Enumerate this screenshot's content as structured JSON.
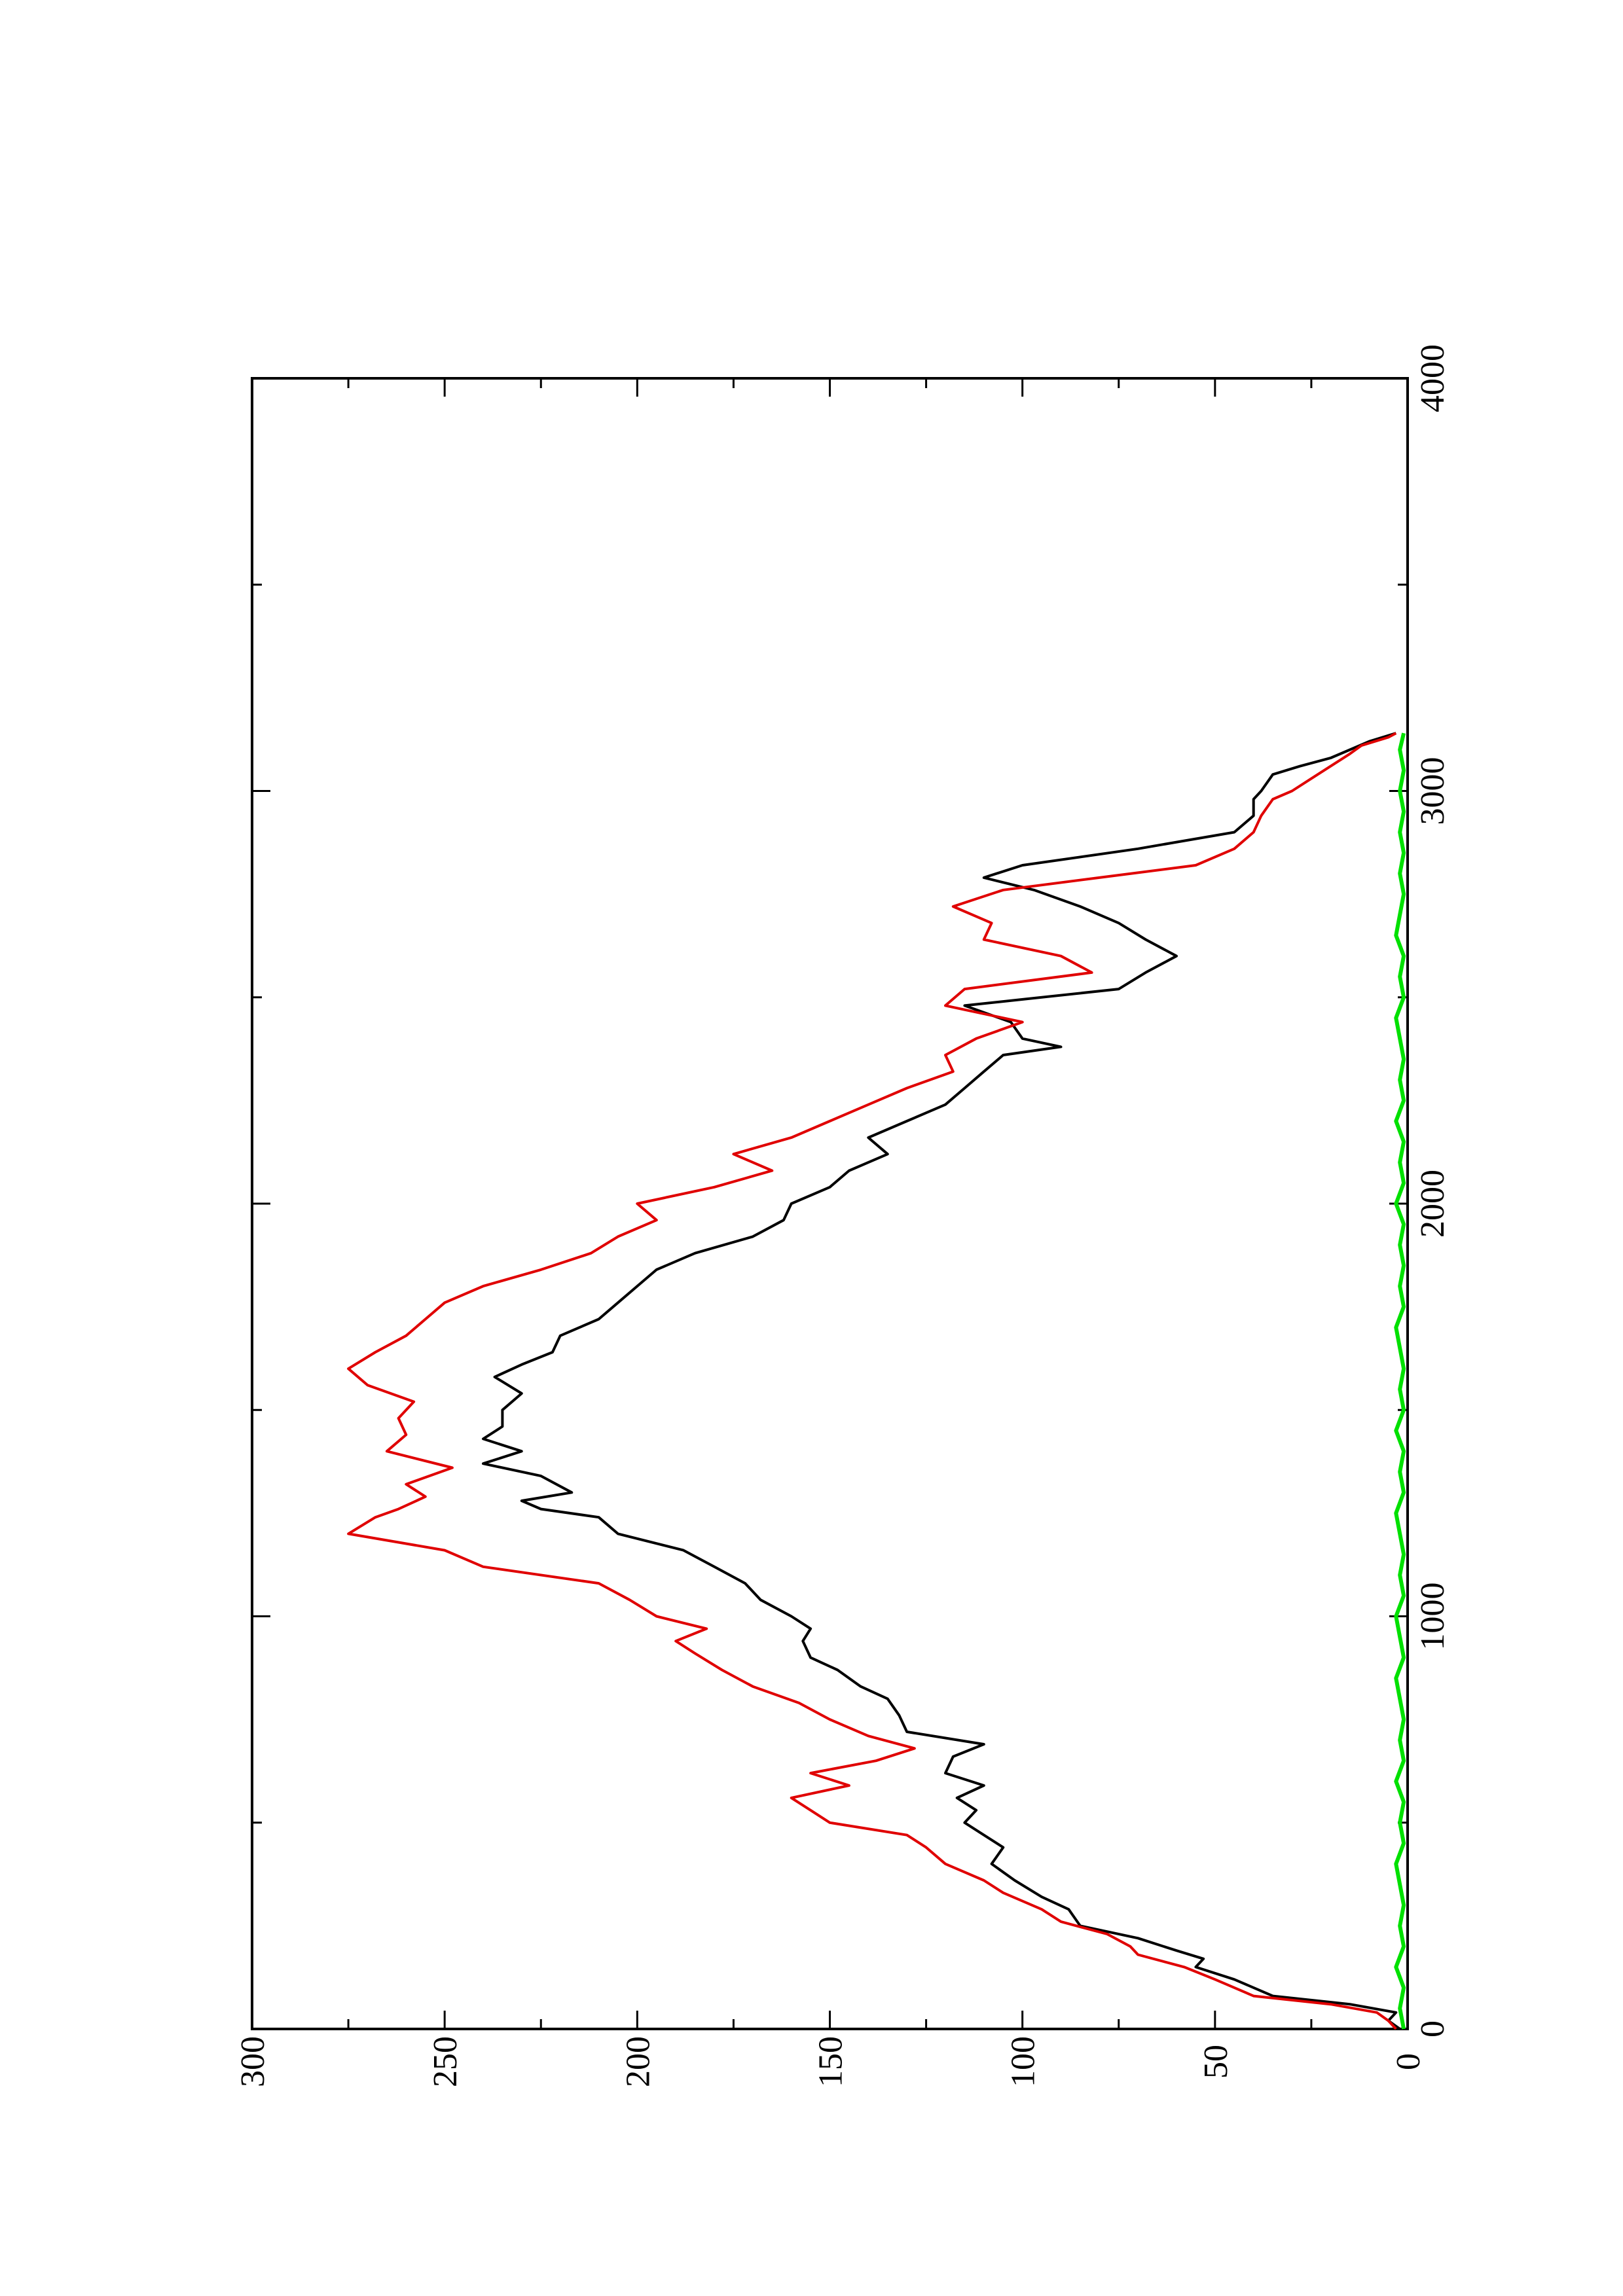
{
  "chart_data": {
    "type": "line",
    "orientation": "rotated-90-ccw",
    "title": "",
    "xlabel": "",
    "ylabel": "",
    "xlim": [
      0,
      4000
    ],
    "ylim": [
      0,
      300
    ],
    "x_ticks": [
      0,
      1000,
      2000,
      3000,
      4000
    ],
    "x_minor_ticks": [
      500,
      1500,
      2500,
      3500
    ],
    "y_ticks": [
      0,
      50,
      100,
      150,
      200,
      250,
      300
    ],
    "y_minor_ticks": [
      25,
      75,
      125,
      175,
      225,
      275
    ],
    "x_tick_labels": [
      "0",
      "1000",
      "2000",
      "3000",
      "4000"
    ],
    "y_tick_labels": [
      "0",
      "50",
      "100",
      "150",
      "200",
      "250",
      "300"
    ],
    "grid": false,
    "legend": "none",
    "series": [
      {
        "color": "#000000",
        "x": [
          0,
          20,
          40,
          60,
          80,
          100,
          120,
          150,
          170,
          190,
          220,
          250,
          290,
          320,
          360,
          400,
          440,
          470,
          500,
          530,
          560,
          590,
          620,
          660,
          690,
          720,
          760,
          800,
          830,
          870,
          900,
          940,
          970,
          1000,
          1040,
          1080,
          1120,
          1160,
          1200,
          1240,
          1260,
          1280,
          1300,
          1340,
          1370,
          1400,
          1430,
          1460,
          1500,
          1540,
          1580,
          1610,
          1640,
          1680,
          1720,
          1760,
          1800,
          1840,
          1880,
          1920,
          1960,
          2000,
          2040,
          2080,
          2120,
          2160,
          2200,
          2240,
          2280,
          2320,
          2360,
          2380,
          2400,
          2440,
          2480,
          2520,
          2560,
          2600,
          2640,
          2680,
          2720,
          2760,
          2790,
          2820,
          2860,
          2900,
          2940,
          2980,
          3000,
          3040,
          3060,
          3080,
          3100,
          3120,
          3140
        ],
        "y": [
          2,
          5,
          3,
          15,
          35,
          40,
          45,
          55,
          53,
          60,
          70,
          85,
          88,
          95,
          102,
          108,
          105,
          110,
          115,
          112,
          117,
          110,
          120,
          118,
          110,
          130,
          132,
          135,
          142,
          148,
          155,
          157,
          155,
          160,
          168,
          172,
          180,
          188,
          205,
          210,
          225,
          230,
          217,
          225,
          240,
          230,
          240,
          235,
          235,
          230,
          237,
          230,
          222,
          220,
          210,
          205,
          200,
          195,
          185,
          170,
          162,
          160,
          150,
          145,
          135,
          140,
          130,
          120,
          115,
          110,
          105,
          90,
          100,
          103,
          115,
          75,
          68,
          60,
          68,
          75,
          85,
          97,
          110,
          100,
          70,
          45,
          40,
          40,
          38,
          35,
          28,
          20,
          15,
          10,
          3
        ],
        "name": ""
      },
      {
        "color": "#e00000",
        "x": [
          0,
          20,
          40,
          60,
          80,
          100,
          120,
          150,
          180,
          200,
          230,
          260,
          290,
          330,
          360,
          400,
          440,
          470,
          500,
          530,
          560,
          590,
          620,
          650,
          680,
          710,
          750,
          790,
          830,
          870,
          910,
          940,
          970,
          1000,
          1040,
          1080,
          1120,
          1160,
          1200,
          1240,
          1260,
          1290,
          1320,
          1360,
          1400,
          1440,
          1480,
          1520,
          1560,
          1600,
          1640,
          1680,
          1720,
          1760,
          1800,
          1840,
          1880,
          1920,
          1960,
          2000,
          2040,
          2080,
          2120,
          2160,
          2200,
          2240,
          2280,
          2320,
          2360,
          2400,
          2440,
          2480,
          2520,
          2560,
          2600,
          2640,
          2680,
          2720,
          2760,
          2790,
          2820,
          2860,
          2900,
          2940,
          2980,
          3000,
          3030,
          3060,
          3090,
          3110,
          3130,
          3140
        ],
        "y": [
          3,
          5,
          8,
          20,
          40,
          45,
          50,
          58,
          70,
          72,
          78,
          90,
          95,
          105,
          110,
          120,
          125,
          130,
          150,
          155,
          160,
          145,
          155,
          138,
          128,
          140,
          150,
          158,
          170,
          178,
          185,
          190,
          182,
          195,
          202,
          210,
          240,
          250,
          275,
          268,
          262,
          255,
          260,
          248,
          265,
          260,
          262,
          258,
          270,
          275,
          268,
          260,
          255,
          250,
          240,
          225,
          212,
          205,
          195,
          200,
          180,
          165,
          175,
          160,
          150,
          140,
          130,
          118,
          120,
          112,
          100,
          120,
          115,
          82,
          90,
          110,
          108,
          118,
          105,
          80,
          55,
          45,
          40,
          38,
          35,
          30,
          25,
          20,
          15,
          12,
          5,
          3
        ],
        "name": ""
      },
      {
        "color": "#00e000",
        "x": [
          0,
          50,
          100,
          150,
          200,
          250,
          300,
          350,
          400,
          450,
          500,
          550,
          600,
          650,
          700,
          750,
          800,
          850,
          900,
          950,
          1000,
          1050,
          1100,
          1150,
          1200,
          1250,
          1300,
          1350,
          1400,
          1450,
          1500,
          1550,
          1600,
          1650,
          1700,
          1750,
          1800,
          1850,
          1900,
          1950,
          2000,
          2050,
          2100,
          2150,
          2200,
          2250,
          2300,
          2350,
          2400,
          2450,
          2500,
          2550,
          2600,
          2650,
          2700,
          2750,
          2800,
          2850,
          2900,
          2950,
          3000,
          3050,
          3100,
          3140
        ],
        "y": [
          1,
          2,
          1,
          3,
          1,
          2,
          1,
          2,
          3,
          1,
          2,
          1,
          3,
          1,
          2,
          1,
          2,
          3,
          1,
          2,
          3,
          1,
          2,
          1,
          2,
          3,
          1,
          2,
          1,
          3,
          1,
          2,
          1,
          2,
          3,
          1,
          2,
          1,
          2,
          1,
          3,
          1,
          2,
          1,
          3,
          1,
          2,
          1,
          2,
          3,
          1,
          2,
          1,
          3,
          2,
          1,
          2,
          1,
          2,
          1,
          2,
          1,
          2,
          1
        ],
        "name": ""
      }
    ]
  }
}
